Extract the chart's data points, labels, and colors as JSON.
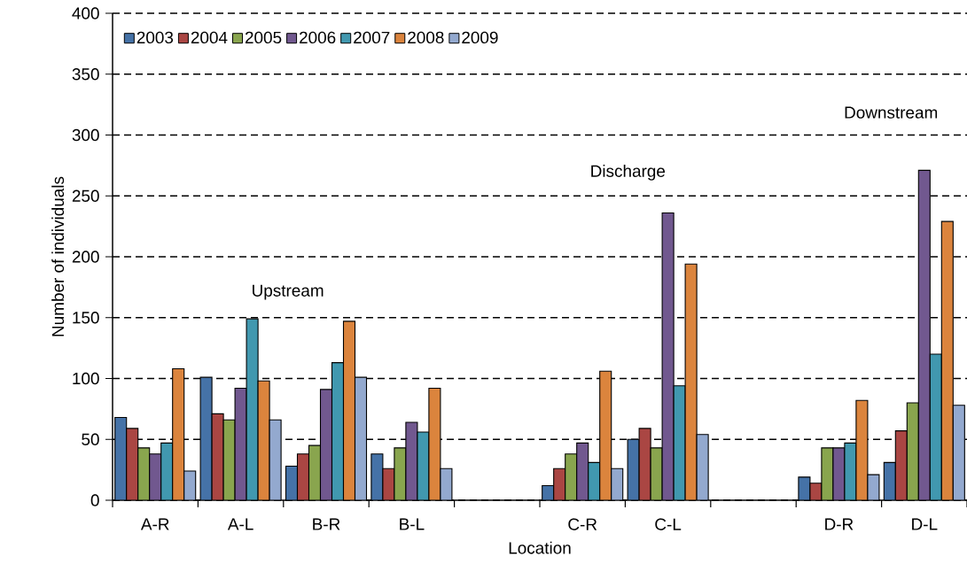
{
  "chart_data": {
    "type": "bar",
    "xlabel": "Location",
    "ylabel": "Number of individuals",
    "categories": [
      "A-R",
      "A-L",
      "B-R",
      "B-L",
      null,
      "C-R",
      "C-L",
      null,
      "D-R",
      "D-L"
    ],
    "series": [
      {
        "name": "2003",
        "color": "#4572a7",
        "values": [
          68,
          101,
          28,
          38,
          null,
          12,
          50,
          null,
          19,
          31
        ]
      },
      {
        "name": "2004",
        "color": "#aa4643",
        "values": [
          59,
          71,
          38,
          26,
          null,
          26,
          59,
          null,
          14,
          57
        ]
      },
      {
        "name": "2005",
        "color": "#89a54e",
        "values": [
          43,
          66,
          45,
          43,
          null,
          38,
          43,
          null,
          43,
          80
        ]
      },
      {
        "name": "2006",
        "color": "#71588f",
        "values": [
          38,
          92,
          91,
          64,
          null,
          47,
          236,
          null,
          43,
          271
        ]
      },
      {
        "name": "2007",
        "color": "#4198af",
        "values": [
          47,
          149,
          113,
          56,
          null,
          31,
          94,
          null,
          47,
          120
        ]
      },
      {
        "name": "2008",
        "color": "#db843d",
        "values": [
          108,
          98,
          147,
          92,
          null,
          106,
          194,
          null,
          82,
          229
        ]
      },
      {
        "name": "2009",
        "color": "#93a9cf",
        "values": [
          24,
          66,
          101,
          26,
          null,
          26,
          54,
          null,
          21,
          78
        ]
      }
    ],
    "ylim": [
      0,
      400
    ],
    "yticks": [
      0,
      50,
      100,
      150,
      200,
      250,
      300,
      350,
      400
    ],
    "grid": "y",
    "legend": "top left",
    "annotations": [
      "Upstream",
      "Discharge",
      "Downstream"
    ]
  }
}
